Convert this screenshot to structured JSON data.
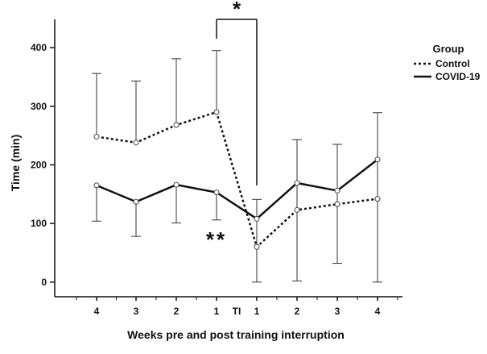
{
  "chart_data": {
    "type": "line",
    "title": "",
    "xlabel": "Weeks pre and post training interruption",
    "ylabel": "Time (min)",
    "ylim": [
      -25,
      440
    ],
    "yticks": [
      0,
      100,
      200,
      300,
      400
    ],
    "categories": [
      "4",
      "3",
      "2",
      "1",
      "1",
      "2",
      "3",
      "4"
    ],
    "gap_label": "TI",
    "legend": {
      "title": "Group",
      "position": "top-right"
    },
    "series": [
      {
        "name": "Control",
        "style": "dotted",
        "values": [
          248,
          238,
          268,
          290,
          60,
          123,
          133,
          142
        ],
        "error_upper": [
          356,
          343,
          381,
          395,
          141,
          243,
          235,
          289
        ],
        "error_lower": [
          null,
          null,
          null,
          null,
          0,
          2,
          32,
          0
        ]
      },
      {
        "name": "COVID-19",
        "style": "solid",
        "values": [
          165,
          137,
          166,
          153,
          108,
          169,
          156,
          209
        ],
        "error_upper": [
          null,
          null,
          null,
          null,
          null,
          null,
          null,
          null
        ],
        "error_lower": [
          104,
          78,
          101,
          106,
          null,
          null,
          null,
          null
        ]
      }
    ],
    "annotations": [
      {
        "text": "*",
        "type": "bracket",
        "from_index": 3,
        "to_index": 4
      },
      {
        "text": "**",
        "near_index": 3
      }
    ]
  }
}
